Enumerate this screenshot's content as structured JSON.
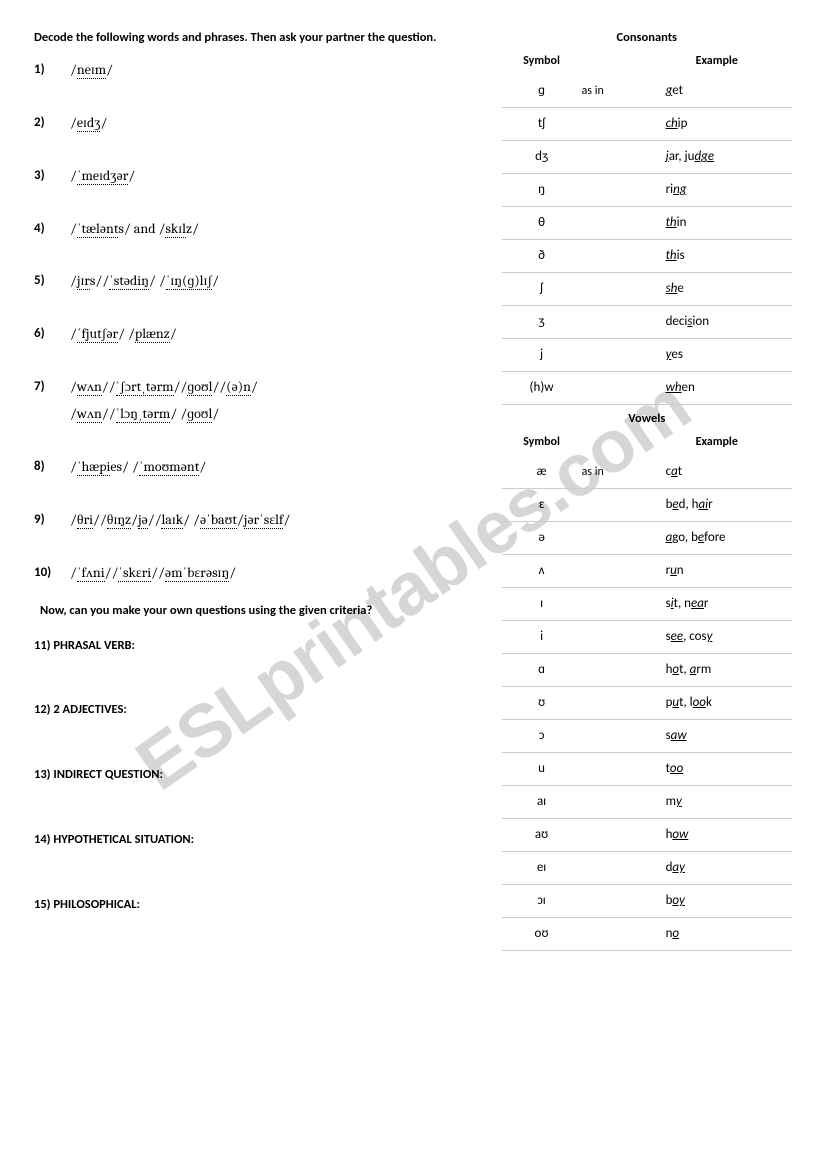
{
  "instruction": "Decode the following words and phrases. Then ask your partner the question.",
  "sub_instruction": "Now, can you make your own questions using the given criteria?",
  "questions": {
    "q1": {
      "num": "1)",
      "ipa": "/<d>neɪm</d>/"
    },
    "q2": {
      "num": "2)",
      "ipa": "/<d>eɪdʒ</d>/"
    },
    "q3": {
      "num": "3)",
      "ipa": "/<d>ˈmeɪdʒər</d>/"
    },
    "q4": {
      "num": "4)",
      "ipa": "/<d>ˈtælənt</d>s/ and /<d>skɪl</d>z/"
    },
    "q5": {
      "num": "5)",
      "ipa": "/<d>jɪr</d>s//<d>ˈstədiŋ</d>/ /<d>ˈɪŋ(ɡ)lɪʃ</d>/"
    },
    "q6": {
      "num": "6)",
      "ipa": "/<d>ˈfjutʃər</d>/ /<d>plænz</d>/"
    },
    "q7a": {
      "num": "7)",
      "ipa": "/<d>wʌn</d>//<d>ˈʃɔrtˌtərm</d>//<d>ɡoʊl</d>//<d>(ə)n</d>/"
    },
    "q7b": {
      "num": "",
      "ipa": "/<d>wʌn</d>//<d>ˈlɔŋˌtərm</d>/ /<d>ɡoʊl</d>/"
    },
    "q8": {
      "num": "8)",
      "ipa": "/<d>ˈhæpi</d>es/ /<d>ˈmoʊmənt</d>/"
    },
    "q9": {
      "num": "9)",
      "ipa": "/<d>θri</d>//<d>θɪŋz</d>/<d>jə</d>//<d>laɪk</d>/ /<d>əˈbaʊt</d>/<d>jərˈsɛlf</d>/"
    },
    "q10": {
      "num": "10)",
      "ipa": "/<d>ˈfʌni</d>//<d>ˈskɛri</d>//<d>əmˈbɛrəsɪŋ</d>/"
    }
  },
  "tasks": {
    "t11": "11)  PHRASAL VERB:",
    "t12": "12)  2 ADJECTIVES:",
    "t13": "13)  INDIRECT QUESTION:",
    "t14": "14)  HYPOTHETICAL SITUATION:",
    "t15": "15)  PHILOSOPHICAL:"
  },
  "consonants": {
    "title": "Consonants",
    "head_symbol": "Symbol",
    "head_example": "Example",
    "as_in": "as in",
    "rows": [
      {
        "sym": "ɡ",
        "ex": "<u>g</u>et"
      },
      {
        "sym": "tʃ",
        "ex": "<u>ch</u>ip"
      },
      {
        "sym": "dʒ",
        "ex": "<u>j</u>ar, ju<u>dge</u>"
      },
      {
        "sym": "ŋ",
        "ex": "ri<u>ng</u>"
      },
      {
        "sym": "θ",
        "ex": "<u>th</u>in"
      },
      {
        "sym": "ð",
        "ex": "<u>th</u>is"
      },
      {
        "sym": "ʃ",
        "ex": "<u>sh</u>e"
      },
      {
        "sym": "ʒ",
        "ex": "deci<u>s</u>ion"
      },
      {
        "sym": "j",
        "ex": "<u>y</u>es"
      },
      {
        "sym": "(h)w",
        "ex": "<u>wh</u>en"
      }
    ]
  },
  "vowels": {
    "title": "Vowels",
    "head_symbol": "Symbol",
    "head_example": "Example",
    "as_in": "as in",
    "rows": [
      {
        "sym": "æ",
        "ex": "c<u>a</u>t"
      },
      {
        "sym": "ɛ",
        "ex": "b<u>e</u>d, h<u>ai</u>r"
      },
      {
        "sym": "ə",
        "ex": "<u>a</u>go, b<u>e</u>fore"
      },
      {
        "sym": "ʌ",
        "ex": "r<u>u</u>n"
      },
      {
        "sym": "ɪ",
        "ex": "s<u>i</u>t, n<u>ea</u>r"
      },
      {
        "sym": "i",
        "ex": "s<u>ee</u>, cos<u>y</u>"
      },
      {
        "sym": "ɑ",
        "ex": "h<u>o</u>t, <u>a</u>rm"
      },
      {
        "sym": "ʊ",
        "ex": "p<u>u</u>t, l<u>oo</u>k"
      },
      {
        "sym": "ɔ",
        "ex": "s<u>aw</u>"
      },
      {
        "sym": "u",
        "ex": "t<u>oo</u>"
      },
      {
        "sym": "aɪ",
        "ex": "m<u>y</u>"
      },
      {
        "sym": "aʊ",
        "ex": "h<u>ow</u>"
      },
      {
        "sym": "eɪ",
        "ex": "d<u>ay</u>"
      },
      {
        "sym": "ɔɪ",
        "ex": "b<u>oy</u>"
      },
      {
        "sym": "oʊ",
        "ex": "n<u>o</u>"
      }
    ]
  },
  "watermark": "ESLprintables.com"
}
